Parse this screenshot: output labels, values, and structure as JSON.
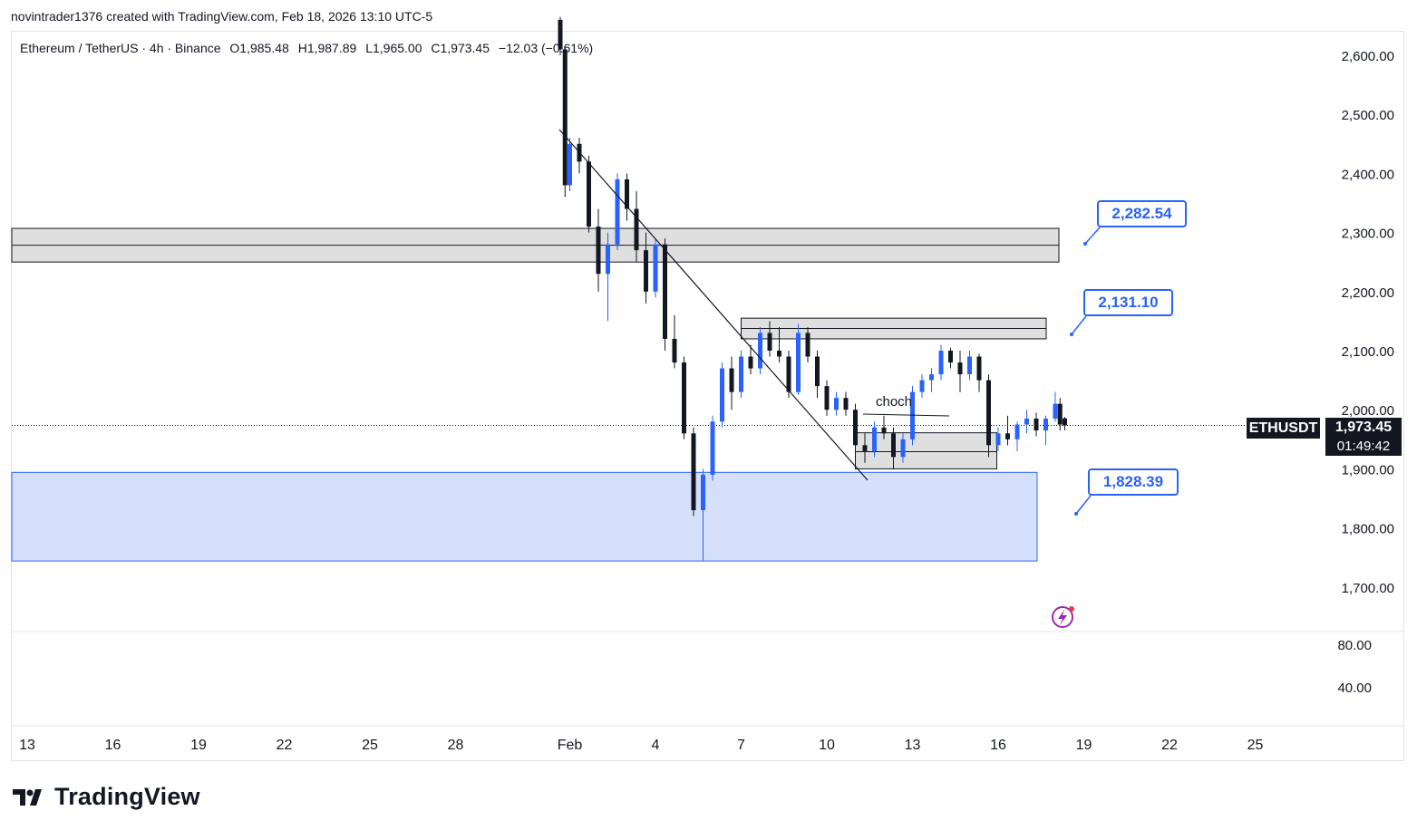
{
  "header": {
    "created_text": "novintrader1376 created with TradingView.com, Feb 18, 2026 13:10 UTC-5"
  },
  "symbol": {
    "name": "Ethereum / TetherUS · 4h · Binance",
    "open": "O1,985.48",
    "high": "H1,987.89",
    "low": "L1,965.00",
    "close": "C1,973.45",
    "change": "−12.03 (−0.61%)"
  },
  "price_axis": {
    "ticks": [
      "2,600.00",
      "2,500.00",
      "2,400.00",
      "2,300.00",
      "2,200.00",
      "2,100.00",
      "2,000.00",
      "1,900.00",
      "1,800.00",
      "1,700.00"
    ],
    "ticker_label": "ETHUSDT",
    "last_price": "1,973.45",
    "countdown": "01:49:42"
  },
  "indicator_axis": {
    "ticks": [
      "80.00",
      "40.00"
    ]
  },
  "time_axis": {
    "ticks": [
      "13",
      "16",
      "19",
      "22",
      "25",
      "28",
      "Feb",
      "4",
      "7",
      "10",
      "13",
      "16",
      "19",
      "22",
      "25"
    ]
  },
  "annotations": {
    "label_high": "2,282.54",
    "label_mid": "2,131.10",
    "label_low": "1,828.39",
    "choch_text": "choch"
  },
  "brand": {
    "name": "TradingView"
  },
  "colors": {
    "bull": "#2962ff",
    "bear": "#131722",
    "demand_zone": "#d6e0fb",
    "supply_zone": "#d9d9d9",
    "accent": "#2962ff"
  },
  "chart_data": {
    "type": "candlestick",
    "title": "Ethereum / TetherUS · 4h · Binance",
    "ylim": [
      1680,
      2660
    ],
    "x_range": [
      "2026-01-12",
      "2026-02-26"
    ],
    "zones": [
      {
        "name": "supply upper",
        "from": "2026-01-12",
        "to": "2026-02-18",
        "y_low": 2250,
        "y_high": 2307
      },
      {
        "name": "supply mid",
        "from": "2026-02-07",
        "to": "2026-02-18",
        "y_low": 2120,
        "y_high": 2155
      },
      {
        "name": "demand",
        "from": "2026-01-12",
        "to": "2026-02-18",
        "y_low": 1744,
        "y_high": 1894
      },
      {
        "name": "range box",
        "from": "2026-02-11",
        "to": "2026-02-17",
        "y_low": 1900,
        "y_high": 1961
      }
    ],
    "trendline": [
      {
        "x": "2026-01-31",
        "y": 2480
      },
      {
        "x": "2026-02-11",
        "y": 1885
      }
    ],
    "price_labels": [
      2282.54,
      2131.1,
      1828.39
    ],
    "candles": [
      {
        "t": "2026-01-31 16:00",
        "o": 2660,
        "h": 2665,
        "l": 2600,
        "c": 2610
      },
      {
        "t": "2026-01-31 20:00",
        "o": 2610,
        "h": 2615,
        "l": 2360,
        "c": 2380
      },
      {
        "t": "2026-02-01 00:00",
        "o": 2380,
        "h": 2460,
        "l": 2370,
        "c": 2450
      },
      {
        "t": "2026-02-01 08:00",
        "o": 2450,
        "h": 2460,
        "l": 2400,
        "c": 2420
      },
      {
        "t": "2026-02-01 16:00",
        "o": 2420,
        "h": 2430,
        "l": 2300,
        "c": 2310
      },
      {
        "t": "2026-02-02 00:00",
        "o": 2310,
        "h": 2340,
        "l": 2200,
        "c": 2230
      },
      {
        "t": "2026-02-02 08:00",
        "o": 2230,
        "h": 2300,
        "l": 2150,
        "c": 2280
      },
      {
        "t": "2026-02-02 16:00",
        "o": 2280,
        "h": 2400,
        "l": 2270,
        "c": 2390
      },
      {
        "t": "2026-02-03 00:00",
        "o": 2390,
        "h": 2400,
        "l": 2320,
        "c": 2340
      },
      {
        "t": "2026-02-03 08:00",
        "o": 2340,
        "h": 2370,
        "l": 2250,
        "c": 2270
      },
      {
        "t": "2026-02-03 16:00",
        "o": 2270,
        "h": 2300,
        "l": 2180,
        "c": 2200
      },
      {
        "t": "2026-02-04 00:00",
        "o": 2200,
        "h": 2290,
        "l": 2190,
        "c": 2280
      },
      {
        "t": "2026-02-04 08:00",
        "o": 2280,
        "h": 2290,
        "l": 2100,
        "c": 2120
      },
      {
        "t": "2026-02-04 16:00",
        "o": 2120,
        "h": 2160,
        "l": 2070,
        "c": 2080
      },
      {
        "t": "2026-02-05 00:00",
        "o": 2080,
        "h": 2090,
        "l": 1950,
        "c": 1960
      },
      {
        "t": "2026-02-05 08:00",
        "o": 1960,
        "h": 1970,
        "l": 1820,
        "c": 1830
      },
      {
        "t": "2026-02-05 16:00",
        "o": 1830,
        "h": 1900,
        "l": 1745,
        "c": 1890
      },
      {
        "t": "2026-02-06 00:00",
        "o": 1890,
        "h": 1990,
        "l": 1880,
        "c": 1980
      },
      {
        "t": "2026-02-06 08:00",
        "o": 1980,
        "h": 2080,
        "l": 1970,
        "c": 2070
      },
      {
        "t": "2026-02-06 16:00",
        "o": 2070,
        "h": 2090,
        "l": 2000,
        "c": 2030
      },
      {
        "t": "2026-02-07 00:00",
        "o": 2030,
        "h": 2100,
        "l": 2020,
        "c": 2090
      },
      {
        "t": "2026-02-07 08:00",
        "o": 2090,
        "h": 2110,
        "l": 2060,
        "c": 2070
      },
      {
        "t": "2026-02-07 16:00",
        "o": 2070,
        "h": 2140,
        "l": 2060,
        "c": 2130
      },
      {
        "t": "2026-02-08 00:00",
        "o": 2130,
        "h": 2150,
        "l": 2090,
        "c": 2100
      },
      {
        "t": "2026-02-08 08:00",
        "o": 2100,
        "h": 2140,
        "l": 2080,
        "c": 2090
      },
      {
        "t": "2026-02-08 16:00",
        "o": 2090,
        "h": 2100,
        "l": 2020,
        "c": 2030
      },
      {
        "t": "2026-02-09 00:00",
        "o": 2030,
        "h": 2145,
        "l": 2025,
        "c": 2130
      },
      {
        "t": "2026-02-09 08:00",
        "o": 2130,
        "h": 2140,
        "l": 2080,
        "c": 2090
      },
      {
        "t": "2026-02-09 16:00",
        "o": 2090,
        "h": 2100,
        "l": 2020,
        "c": 2040
      },
      {
        "t": "2026-02-10 00:00",
        "o": 2040,
        "h": 2050,
        "l": 1990,
        "c": 2000
      },
      {
        "t": "2026-02-10 08:00",
        "o": 2000,
        "h": 2030,
        "l": 1990,
        "c": 2020
      },
      {
        "t": "2026-02-10 16:00",
        "o": 2020,
        "h": 2030,
        "l": 1990,
        "c": 2000
      },
      {
        "t": "2026-02-11 00:00",
        "o": 2000,
        "h": 2010,
        "l": 1920,
        "c": 1940
      },
      {
        "t": "2026-02-11 08:00",
        "o": 1940,
        "h": 1960,
        "l": 1910,
        "c": 1930
      },
      {
        "t": "2026-02-11 16:00",
        "o": 1930,
        "h": 1980,
        "l": 1920,
        "c": 1970
      },
      {
        "t": "2026-02-12 00:00",
        "o": 1970,
        "h": 1990,
        "l": 1950,
        "c": 1960
      },
      {
        "t": "2026-02-12 08:00",
        "o": 1960,
        "h": 1970,
        "l": 1900,
        "c": 1920
      },
      {
        "t": "2026-02-12 16:00",
        "o": 1920,
        "h": 1960,
        "l": 1910,
        "c": 1950
      },
      {
        "t": "2026-02-13 00:00",
        "o": 1950,
        "h": 2040,
        "l": 1940,
        "c": 2030
      },
      {
        "t": "2026-02-13 08:00",
        "o": 2030,
        "h": 2060,
        "l": 2020,
        "c": 2050
      },
      {
        "t": "2026-02-13 16:00",
        "o": 2050,
        "h": 2070,
        "l": 2030,
        "c": 2060
      },
      {
        "t": "2026-02-14 00:00",
        "o": 2060,
        "h": 2110,
        "l": 2050,
        "c": 2100
      },
      {
        "t": "2026-02-14 08:00",
        "o": 2100,
        "h": 2105,
        "l": 2070,
        "c": 2080
      },
      {
        "t": "2026-02-14 16:00",
        "o": 2080,
        "h": 2100,
        "l": 2030,
        "c": 2060
      },
      {
        "t": "2026-02-15 00:00",
        "o": 2060,
        "h": 2100,
        "l": 2050,
        "c": 2090
      },
      {
        "t": "2026-02-15 08:00",
        "o": 2090,
        "h": 2095,
        "l": 2030,
        "c": 2050
      },
      {
        "t": "2026-02-15 16:00",
        "o": 2050,
        "h": 2060,
        "l": 1920,
        "c": 1940
      },
      {
        "t": "2026-02-16 00:00",
        "o": 1940,
        "h": 1970,
        "l": 1930,
        "c": 1960
      },
      {
        "t": "2026-02-16 08:00",
        "o": 1960,
        "h": 1990,
        "l": 1940,
        "c": 1950
      },
      {
        "t": "2026-02-16 16:00",
        "o": 1950,
        "h": 1980,
        "l": 1930,
        "c": 1975
      },
      {
        "t": "2026-02-17 00:00",
        "o": 1975,
        "h": 2000,
        "l": 1960,
        "c": 1985
      },
      {
        "t": "2026-02-17 08:00",
        "o": 1985,
        "h": 1995,
        "l": 1955,
        "c": 1965
      },
      {
        "t": "2026-02-17 16:00",
        "o": 1965,
        "h": 1990,
        "l": 1940,
        "c": 1985
      },
      {
        "t": "2026-02-18 00:00",
        "o": 1985,
        "h": 2030,
        "l": 1980,
        "c": 2010
      },
      {
        "t": "2026-02-18 04:00",
        "o": 2010,
        "h": 2020,
        "l": 1965,
        "c": 1975
      },
      {
        "t": "2026-02-18 08:00",
        "o": 1985.48,
        "h": 1987.89,
        "l": 1965,
        "c": 1973.45
      }
    ]
  }
}
